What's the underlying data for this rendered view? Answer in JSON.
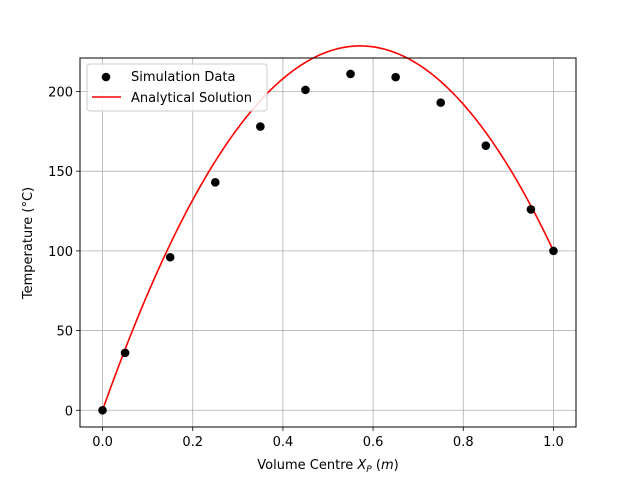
{
  "chart_data": {
    "type": "scatter",
    "title": "",
    "xlabel": {
      "text": "Volume Centre ",
      "var": "X",
      "sub": "P",
      "unit_pre": " (",
      "unit": "m",
      "unit_post": ")"
    },
    "ylabel": "Temperature (°C)",
    "xlim": [
      -0.05,
      1.05
    ],
    "ylim": [
      -10.5,
      221
    ],
    "xticks": [
      0.0,
      0.2,
      0.4,
      0.6,
      0.8,
      1.0
    ],
    "xtick_labels": [
      "0.0",
      "0.2",
      "0.4",
      "0.6",
      "0.8",
      "1.0"
    ],
    "yticks": [
      0,
      50,
      100,
      150,
      200
    ],
    "ytick_labels": [
      "0",
      "50",
      "100",
      "150",
      "200"
    ],
    "grid": true,
    "legend_position": "top-left",
    "series": [
      {
        "name": "Simulation Data",
        "kind": "scatter",
        "color": "#000000",
        "x": [
          0.0,
          0.05,
          0.15,
          0.25,
          0.35,
          0.45,
          0.55,
          0.65,
          0.75,
          0.85,
          0.95,
          1.0
        ],
        "y": [
          0,
          36,
          96,
          143,
          178,
          201,
          211,
          209,
          193,
          166,
          126,
          100
        ]
      },
      {
        "name": "Analytical Solution",
        "kind": "line",
        "color": "#ff0000",
        "equation": "T(x) = -700x^2 + 800x",
        "x_range": [
          0.0,
          1.0
        ]
      }
    ]
  }
}
